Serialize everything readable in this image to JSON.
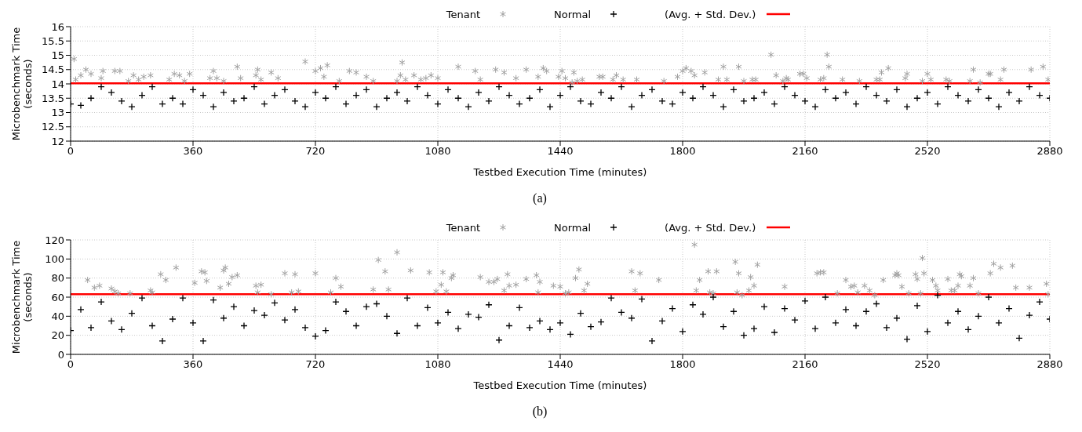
{
  "chart_data": [
    {
      "type": "scatter",
      "xlabel": "Testbed Execution Time (minutes)",
      "ylabel": "Microbenchmark Time\n(seconds)",
      "xlim": [
        0,
        2880
      ],
      "xticks": [
        0,
        360,
        720,
        1080,
        1440,
        1800,
        2160,
        2520,
        2880
      ],
      "ylim": [
        12,
        16
      ],
      "yticks": [
        12,
        12.5,
        13,
        13.5,
        14,
        14.5,
        15,
        15.5,
        16
      ],
      "grid": true,
      "legend": "top",
      "annotations": [
        "(a)"
      ],
      "ref_lines": [
        {
          "axis": "y",
          "value": 14.02,
          "label": "(Avg. + Std. Dev.)",
          "color": "#ff0000"
        }
      ],
      "series": [
        {
          "name": "Tenant",
          "color": "#a0a0a0",
          "x": [
            10,
            15,
            30,
            45,
            60,
            90,
            95,
            130,
            145,
            170,
            185,
            200,
            215,
            235,
            290,
            305,
            320,
            335,
            350,
            410,
            420,
            430,
            450,
            490,
            500,
            545,
            550,
            560,
            590,
            610,
            690,
            720,
            735,
            745,
            755,
            790,
            820,
            840,
            870,
            890,
            960,
            970,
            975,
            985,
            1010,
            1030,
            1045,
            1060,
            1080,
            1140,
            1190,
            1205,
            1250,
            1275,
            1310,
            1340,
            1375,
            1390,
            1400,
            1435,
            1445,
            1455,
            1475,
            1480,
            1490,
            1505,
            1555,
            1565,
            1595,
            1605,
            1625,
            1665,
            1745,
            1785,
            1800,
            1810,
            1825,
            1835,
            1865,
            1905,
            1920,
            1930,
            1965,
            1980,
            2005,
            2015,
            2060,
            2075,
            2095,
            2105,
            2110,
            2145,
            2155,
            2165,
            2205,
            2215,
            2225,
            2230,
            2270,
            2320,
            2370,
            2380,
            2385,
            2405,
            2455,
            2460,
            2505,
            2520,
            2530,
            2575,
            2585,
            2645,
            2655,
            2675,
            2700,
            2705,
            2735,
            2745,
            2825,
            2860,
            2875
          ],
          "values": [
            14.87,
            14.15,
            14.3,
            14.5,
            14.35,
            14.2,
            14.45,
            14.45,
            14.45,
            14.1,
            14.3,
            14.15,
            14.25,
            14.3,
            14.15,
            14.35,
            14.3,
            14.1,
            14.35,
            14.2,
            14.45,
            14.2,
            14.1,
            14.6,
            14.2,
            14.3,
            14.5,
            14.15,
            14.4,
            14.2,
            14.78,
            14.45,
            14.55,
            14.25,
            14.65,
            14.1,
            14.45,
            14.4,
            14.25,
            14.1,
            14.1,
            14.3,
            14.75,
            14.15,
            14.3,
            14.15,
            14.2,
            14.3,
            14.2,
            14.6,
            14.45,
            14.15,
            14.5,
            14.4,
            14.2,
            14.5,
            14.25,
            14.55,
            14.45,
            14.25,
            14.45,
            14.2,
            14.05,
            14.4,
            14.1,
            14.15,
            14.25,
            14.25,
            14.15,
            14.3,
            14.15,
            14.15,
            14.1,
            14.25,
            14.45,
            14.55,
            14.45,
            14.3,
            14.4,
            14.15,
            14.6,
            14.15,
            14.6,
            14.1,
            14.15,
            14.15,
            15.02,
            14.3,
            14.1,
            14.2,
            14.15,
            14.35,
            14.35,
            14.2,
            14.15,
            14.2,
            15.02,
            14.6,
            14.15,
            14.1,
            14.15,
            14.15,
            14.4,
            14.55,
            14.2,
            14.35,
            14.1,
            14.35,
            14.15,
            14.15,
            14.1,
            14.1,
            14.5,
            14.05,
            14.35,
            14.35,
            14.15,
            14.5,
            14.5,
            14.6,
            14.15
          ]
        },
        {
          "name": "Normal",
          "color": "#000000",
          "marker": "cross",
          "x": [
            0,
            30,
            60,
            90,
            120,
            150,
            180,
            210,
            240,
            270,
            300,
            330,
            360,
            390,
            420,
            450,
            480,
            510,
            540,
            570,
            600,
            630,
            660,
            690,
            720,
            750,
            780,
            810,
            840,
            870,
            900,
            930,
            960,
            990,
            1020,
            1050,
            1080,
            1110,
            1140,
            1170,
            1200,
            1230,
            1260,
            1290,
            1320,
            1350,
            1380,
            1410,
            1440,
            1470,
            1500,
            1530,
            1560,
            1590,
            1620,
            1650,
            1680,
            1710,
            1740,
            1770,
            1800,
            1830,
            1860,
            1890,
            1920,
            1950,
            1980,
            2010,
            2040,
            2070,
            2100,
            2130,
            2160,
            2190,
            2220,
            2250,
            2280,
            2310,
            2340,
            2370,
            2400,
            2430,
            2460,
            2490,
            2520,
            2550,
            2580,
            2610,
            2640,
            2670,
            2700,
            2730,
            2760,
            2790,
            2820,
            2850,
            2880
          ],
          "values": [
            13.3,
            13.25,
            13.5,
            13.9,
            13.7,
            13.4,
            13.2,
            13.6,
            13.9,
            13.3,
            13.5,
            13.3,
            13.8,
            13.6,
            13.2,
            13.7,
            13.4,
            13.5,
            13.9,
            13.3,
            13.6,
            13.8,
            13.4,
            13.2,
            13.7,
            13.5,
            13.9,
            13.3,
            13.6,
            13.8,
            13.2,
            13.5,
            13.7,
            13.4,
            13.9,
            13.6,
            13.3,
            13.8,
            13.5,
            13.2,
            13.7,
            13.4,
            13.9,
            13.6,
            13.3,
            13.5,
            13.8,
            13.2,
            13.6,
            13.9,
            13.4,
            13.3,
            13.7,
            13.5,
            13.9,
            13.2,
            13.6,
            13.8,
            13.4,
            13.3,
            13.7,
            13.5,
            13.9,
            13.6,
            13.2,
            13.8,
            13.4,
            13.5,
            13.7,
            13.3,
            13.9,
            13.6,
            13.4,
            13.2,
            13.8,
            13.5,
            13.7,
            13.3,
            13.9,
            13.6,
            13.4,
            13.8,
            13.2,
            13.5,
            13.7,
            13.3,
            13.9,
            13.6,
            13.4,
            13.8,
            13.5,
            13.2,
            13.7,
            13.4,
            13.9,
            13.6,
            13.5
          ]
        }
      ]
    },
    {
      "type": "scatter",
      "xlabel": "Testbed Execution Time (minutes)",
      "ylabel": "Microbenchmark Time\n(seconds)",
      "xlim": [
        0,
        2880
      ],
      "xticks": [
        0,
        360,
        720,
        1080,
        1440,
        1800,
        2160,
        2520,
        2880
      ],
      "ylim": [
        0,
        120
      ],
      "yticks": [
        0,
        20,
        40,
        60,
        80,
        100,
        120
      ],
      "grid": true,
      "legend": "top",
      "annotations": [
        "(b)"
      ],
      "ref_lines": [
        {
          "axis": "y",
          "value": 63,
          "label": "(Avg. + Std. Dev.)",
          "color": "#ff0000"
        }
      ],
      "series": [
        {
          "name": "Tenant",
          "color": "#a0a0a0",
          "x": [
            50,
            70,
            85,
            120,
            130,
            140,
            175,
            235,
            240,
            265,
            280,
            310,
            365,
            385,
            395,
            400,
            440,
            450,
            455,
            465,
            475,
            490,
            545,
            550,
            560,
            590,
            630,
            650,
            660,
            670,
            720,
            765,
            780,
            795,
            890,
            905,
            925,
            935,
            960,
            1000,
            1055,
            1075,
            1090,
            1095,
            1105,
            1120,
            1125,
            1205,
            1230,
            1245,
            1255,
            1275,
            1285,
            1290,
            1310,
            1340,
            1370,
            1375,
            1380,
            1420,
            1440,
            1455,
            1465,
            1485,
            1495,
            1510,
            1520,
            1650,
            1660,
            1675,
            1730,
            1835,
            1840,
            1850,
            1875,
            1880,
            1890,
            1900,
            1955,
            1960,
            1965,
            1975,
            1995,
            2000,
            2010,
            2020,
            2100,
            2195,
            2205,
            2215,
            2255,
            2280,
            2295,
            2305,
            2315,
            2335,
            2350,
            2365,
            2390,
            2425,
            2430,
            2435,
            2445,
            2465,
            2485,
            2490,
            2500,
            2505,
            2510,
            2535,
            2545,
            2550,
            2580,
            2590,
            2600,
            2610,
            2615,
            2620,
            2645,
            2655,
            2670,
            2705,
            2715,
            2735,
            2770,
            2780,
            2820,
            2870,
            2875
          ],
          "values": [
            78,
            70,
            72,
            69,
            66,
            64,
            64,
            67,
            65,
            84,
            78,
            91,
            75,
            87,
            86,
            77,
            70,
            88,
            91,
            74,
            81,
            83,
            72,
            65,
            73,
            63,
            85,
            65,
            84,
            66,
            85,
            65,
            80,
            71,
            68,
            99,
            87,
            68,
            107,
            88,
            86,
            66,
            73,
            86,
            66,
            80,
            83,
            81,
            76,
            76,
            79,
            67,
            84,
            72,
            73,
            79,
            83,
            65,
            76,
            72,
            71,
            64,
            65,
            80,
            89,
            67,
            74,
            87,
            67,
            85,
            78,
            115,
            67,
            78,
            87,
            65,
            64,
            87,
            97,
            65,
            85,
            62,
            67,
            81,
            72,
            94,
            71,
            85,
            86,
            86,
            64,
            78,
            71,
            72,
            65,
            72,
            67,
            62,
            78,
            83,
            85,
            83,
            71,
            64,
            84,
            79,
            64,
            101,
            85,
            78,
            72,
            67,
            79,
            67,
            67,
            72,
            84,
            82,
            72,
            80,
            64,
            85,
            95,
            91,
            93,
            70,
            70,
            74,
            63
          ]
        },
        {
          "name": "Normal",
          "color": "#000000",
          "marker": "cross",
          "x": [
            0,
            30,
            60,
            90,
            120,
            150,
            180,
            210,
            240,
            270,
            300,
            330,
            360,
            390,
            420,
            450,
            480,
            510,
            540,
            570,
            600,
            630,
            660,
            690,
            720,
            750,
            780,
            810,
            840,
            870,
            900,
            930,
            960,
            990,
            1020,
            1050,
            1080,
            1110,
            1140,
            1170,
            1200,
            1230,
            1260,
            1290,
            1320,
            1350,
            1380,
            1410,
            1440,
            1470,
            1500,
            1530,
            1560,
            1590,
            1620,
            1650,
            1680,
            1710,
            1740,
            1770,
            1800,
            1830,
            1860,
            1890,
            1920,
            1950,
            1980,
            2010,
            2040,
            2070,
            2100,
            2130,
            2160,
            2190,
            2220,
            2250,
            2280,
            2310,
            2340,
            2370,
            2400,
            2430,
            2460,
            2490,
            2520,
            2550,
            2580,
            2610,
            2640,
            2670,
            2700,
            2730,
            2760,
            2790,
            2820,
            2850,
            2880
          ],
          "values": [
            25,
            47,
            28,
            55,
            35,
            26,
            43,
            59,
            30,
            14,
            37,
            59,
            33,
            14,
            57,
            38,
            50,
            30,
            46,
            41,
            54,
            36,
            47,
            28,
            19,
            25,
            55,
            45,
            30,
            50,
            53,
            40,
            22,
            59,
            30,
            49,
            33,
            44,
            27,
            42,
            39,
            52,
            15,
            30,
            49,
            28,
            35,
            26,
            33,
            21,
            43,
            29,
            34,
            59,
            44,
            38,
            58,
            14,
            35,
            48,
            24,
            52,
            42,
            60,
            29,
            45,
            20,
            27,
            50,
            23,
            48,
            36,
            56,
            27,
            60,
            33,
            47,
            30,
            45,
            53,
            28,
            38,
            16,
            51,
            24,
            62,
            33,
            45,
            26,
            40,
            60,
            33,
            48,
            17,
            41,
            55,
            37
          ]
        }
      ]
    }
  ]
}
